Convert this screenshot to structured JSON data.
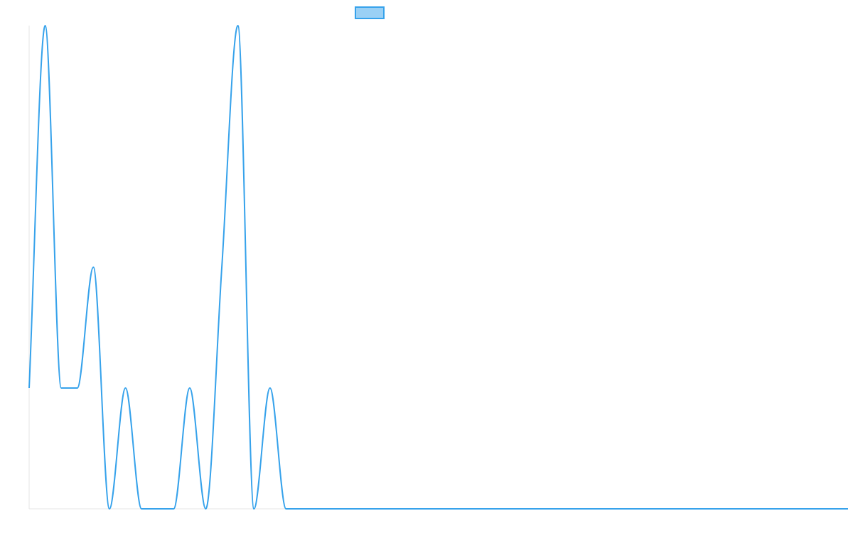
{
  "chart_data": {
    "type": "line",
    "title": "",
    "xlabel": "",
    "ylabel": "",
    "legend": {
      "position": "top-center",
      "labels": [
        ""
      ]
    },
    "grid": false,
    "ylim": [
      0,
      4
    ],
    "x": [
      0,
      1,
      2,
      3,
      4,
      5,
      6,
      7,
      8,
      9,
      10,
      11,
      12,
      13,
      14,
      15,
      16,
      17,
      18,
      19,
      20,
      21,
      22,
      23,
      24,
      25,
      26,
      27,
      28,
      29,
      30,
      31,
      32,
      33,
      34,
      35,
      36,
      37,
      38,
      39,
      40,
      41,
      42,
      43,
      44,
      45,
      46,
      47,
      48,
      49,
      50,
      51
    ],
    "series": [
      {
        "name": "",
        "color": "#36a2eb",
        "fill": "#9ad0f5",
        "values": [
          1,
          4,
          1,
          1,
          2,
          0,
          1,
          0,
          0,
          0,
          1,
          0,
          2,
          4,
          0,
          1,
          0,
          0,
          0,
          0,
          0,
          0,
          0,
          0,
          0,
          0,
          0,
          0,
          0,
          0,
          0,
          0,
          0,
          0,
          0,
          0,
          0,
          0,
          0,
          0,
          0,
          0,
          0,
          0,
          0,
          0,
          0,
          0,
          0,
          0,
          0,
          0
        ]
      }
    ]
  }
}
